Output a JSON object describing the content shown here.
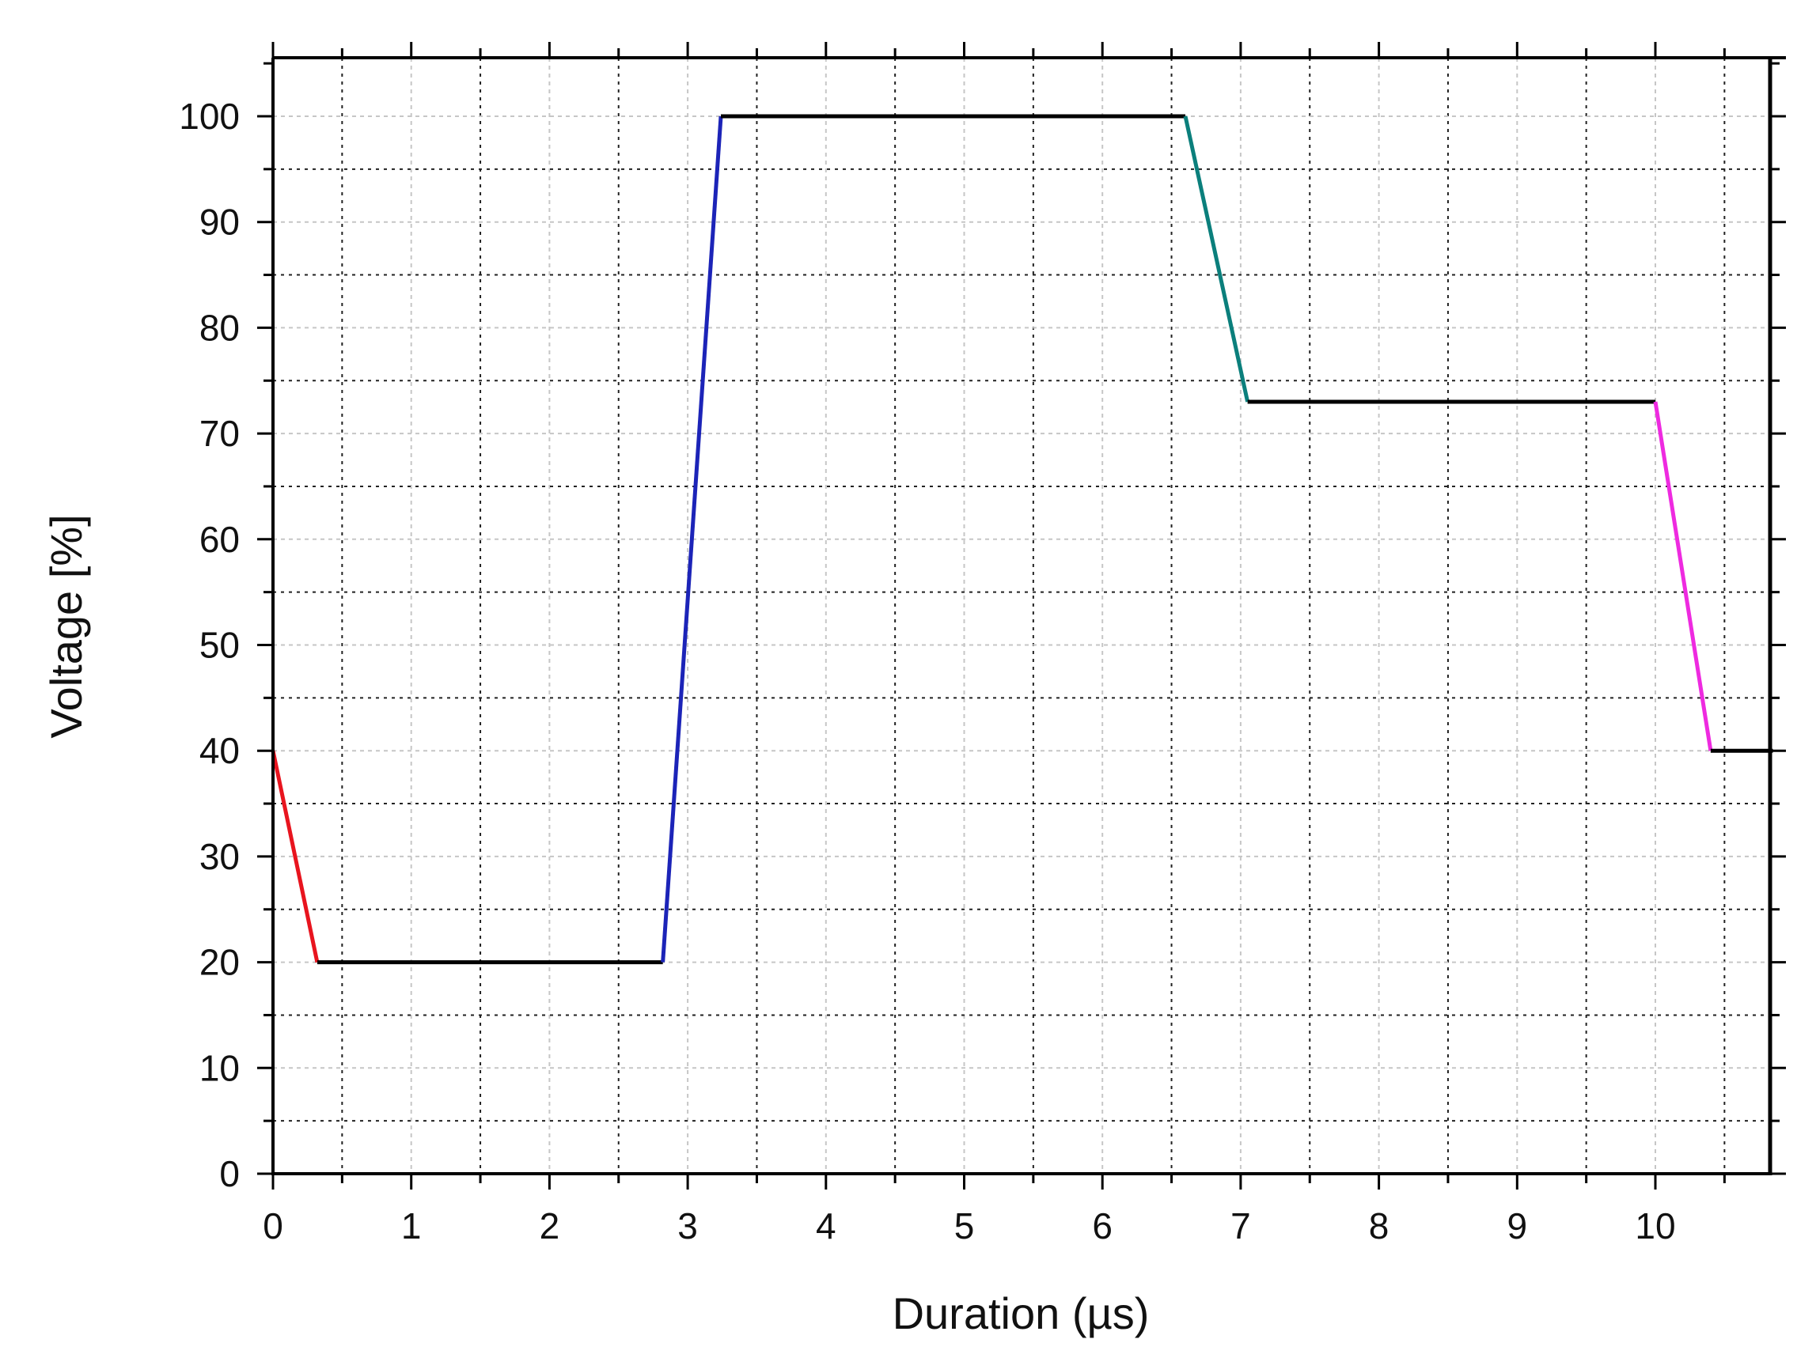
{
  "chart_data": {
    "type": "line",
    "title": "",
    "xlabel": "Duration (µs)",
    "ylabel": "Voltage [%]",
    "xlim": [
      0,
      10.85
    ],
    "ylim": [
      0,
      100
    ],
    "x_ticks": [
      0,
      1,
      2,
      3,
      4,
      5,
      6,
      7,
      8,
      9,
      10
    ],
    "x_tick_labels": [
      "0",
      "1",
      "2",
      "3",
      "4",
      "5",
      "6",
      "7",
      "8",
      "9",
      "10"
    ],
    "y_ticks": [
      0,
      10,
      20,
      30,
      40,
      50,
      60,
      70,
      80,
      90,
      100
    ],
    "y_tick_labels": [
      "0",
      "10",
      "20",
      "30",
      "40",
      "50",
      "60",
      "70",
      "80",
      "90",
      "100"
    ],
    "grid": true,
    "legend": "none",
    "series": [
      {
        "color": "#e8141e",
        "points": [
          [
            0,
            40
          ],
          [
            0.32,
            20
          ]
        ]
      },
      {
        "color": "#000000",
        "points": [
          [
            0.32,
            20
          ],
          [
            2.82,
            20
          ]
        ]
      },
      {
        "color": "#1c24b8",
        "points": [
          [
            2.82,
            20
          ],
          [
            3.24,
            100
          ]
        ]
      },
      {
        "color": "#000000",
        "points": [
          [
            3.24,
            100
          ],
          [
            6.6,
            100
          ]
        ]
      },
      {
        "color": "#0b7f7c",
        "points": [
          [
            6.6,
            100
          ],
          [
            7.05,
            73
          ]
        ]
      },
      {
        "color": "#000000",
        "points": [
          [
            7.05,
            73
          ],
          [
            10,
            73
          ]
        ]
      },
      {
        "color": "#ee2ae0",
        "points": [
          [
            10,
            73
          ],
          [
            10.4,
            40
          ]
        ]
      },
      {
        "color": "#000000",
        "points": [
          [
            10.4,
            40
          ],
          [
            10.85,
            40
          ]
        ]
      }
    ]
  }
}
